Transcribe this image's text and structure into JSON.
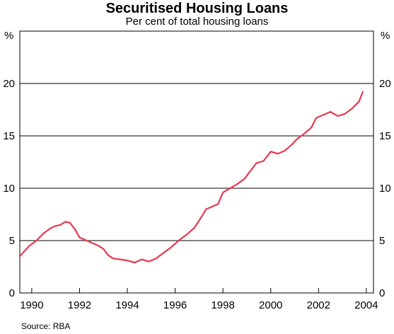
{
  "chart_data": {
    "type": "line",
    "title": "Securitised Housing Loans",
    "subtitle": "Per cent of total housing loans",
    "ylabel_left": "%",
    "ylabel_right": "%",
    "source": "Source: RBA",
    "ylim": [
      0,
      25
    ],
    "yticks": [
      0,
      5,
      10,
      15,
      20
    ],
    "xlim": [
      1989.5,
      2004.3
    ],
    "xticks": [
      1990,
      1992,
      1994,
      1996,
      1998,
      2000,
      2002,
      2004
    ],
    "grid": "horizontal",
    "colors": {
      "line": "#e8384f",
      "grid": "#000000"
    },
    "series": [
      {
        "x": [
          1989.5,
          1989.7,
          1989.9,
          1990.2,
          1990.5,
          1990.8,
          1991.0,
          1991.2,
          1991.4,
          1991.6,
          1991.8,
          1992.0,
          1992.2,
          1992.5,
          1992.8,
          1993.0,
          1993.2,
          1993.4,
          1993.7,
          1994.0,
          1994.3,
          1994.6,
          1994.9,
          1995.2,
          1995.5,
          1995.8,
          1996.0,
          1996.2,
          1996.5,
          1996.8,
          1997.0,
          1997.3,
          1997.6,
          1997.8,
          1998.0,
          1998.3,
          1998.6,
          1998.9,
          1999.1,
          1999.4,
          1999.7,
          2000.0,
          2000.3,
          2000.6,
          2000.9,
          2001.1,
          2001.4,
          2001.7,
          2001.9,
          2002.2,
          2002.5,
          2002.8,
          2003.1,
          2003.4,
          2003.7,
          2003.85
        ],
        "y": [
          3.5,
          4.0,
          4.5,
          5.0,
          5.7,
          6.2,
          6.4,
          6.5,
          6.8,
          6.7,
          6.1,
          5.3,
          5.1,
          4.8,
          4.5,
          4.2,
          3.6,
          3.3,
          3.2,
          3.1,
          2.9,
          3.2,
          3.0,
          3.3,
          3.8,
          4.3,
          4.7,
          5.1,
          5.6,
          6.2,
          6.9,
          8.0,
          8.3,
          8.5,
          9.6,
          10.0,
          10.4,
          10.9,
          11.5,
          12.4,
          12.6,
          13.5,
          13.3,
          13.6,
          14.2,
          14.7,
          15.2,
          15.8,
          16.7,
          17.0,
          17.3,
          16.9,
          17.1,
          17.6,
          18.3,
          19.2
        ]
      }
    ]
  }
}
